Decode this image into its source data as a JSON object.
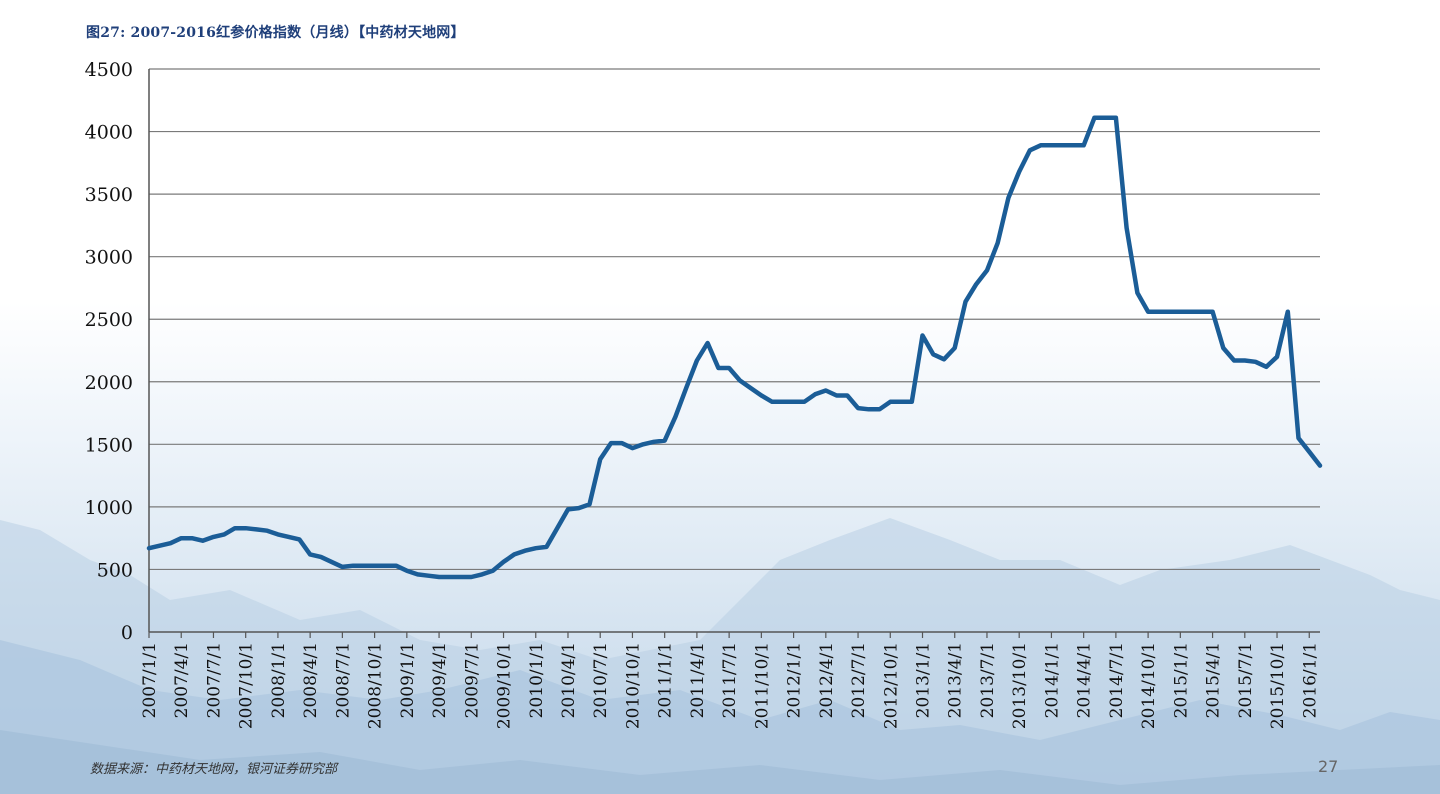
{
  "page": {
    "title": "图27:  2007-2016红参价格指数（月线）【中药材天地网】",
    "source": "数据来源：中药材天地网，银河证券研究部",
    "page_number": "27"
  },
  "colors": {
    "line": "#1b5d97",
    "grid": "#7a7a7a",
    "axis": "#555555",
    "title": "#1f3f7a"
  },
  "chart_data": {
    "type": "line",
    "title": "图27:  2007-2016红参价格指数（月线）【中药材天地网】",
    "xlabel": "",
    "ylabel": "",
    "ylim": [
      0,
      4500
    ],
    "yticks": [
      0,
      500,
      1000,
      1500,
      2000,
      2500,
      3000,
      3500,
      4000,
      4500
    ],
    "grid": true,
    "legend": "none",
    "xtick_labels": [
      "2007/1/1",
      "2007/4/1",
      "2007/7/1",
      "2007/10/1",
      "2008/1/1",
      "2008/4/1",
      "2008/7/1",
      "2008/10/1",
      "2009/1/1",
      "2009/4/1",
      "2009/7/1",
      "2009/10/1",
      "2010/1/1",
      "2010/4/1",
      "2010/7/1",
      "2010/10/1",
      "2011/1/1",
      "2011/4/1",
      "2011/7/1",
      "2011/10/1",
      "2012/1/1",
      "2012/4/1",
      "2012/7/1",
      "2012/10/1",
      "2013/1/1",
      "2013/4/1",
      "2013/7/1",
      "2013/10/1",
      "2014/1/1",
      "2014/4/1",
      "2014/7/1",
      "2014/10/1",
      "2015/1/1",
      "2015/4/1",
      "2015/7/1",
      "2015/10/1",
      "2016/1/1"
    ],
    "series": [
      {
        "values": [
          670,
          690,
          710,
          750,
          750,
          730,
          760,
          780,
          830,
          830,
          820,
          810,
          780,
          760,
          740,
          620,
          600,
          560,
          520,
          530,
          530,
          530,
          530,
          530,
          490,
          460,
          450,
          440,
          440,
          440,
          440,
          460,
          490,
          560,
          620,
          650,
          670,
          680,
          830,
          980,
          990,
          1020,
          1380,
          1510,
          1510,
          1470,
          1500,
          1520,
          1530,
          1720,
          1950,
          2170,
          2310,
          2110,
          2110,
          2010,
          1950,
          1890,
          1840,
          1840,
          1840,
          1840,
          1900,
          1930,
          1890,
          1890,
          1790,
          1780,
          1780,
          1840,
          1840,
          1840,
          2370,
          2220,
          2180,
          2270,
          2640,
          2780,
          2890,
          3110,
          3470,
          3680,
          3850,
          3890,
          3890,
          3890,
          3890,
          3890,
          4110,
          4110,
          4110,
          3230,
          2710,
          2560,
          2560,
          2560,
          2560,
          2560,
          2560,
          2560,
          2270,
          2170,
          2170,
          2160,
          2120,
          2200,
          2560,
          1550,
          1440,
          1330
        ]
      }
    ]
  }
}
